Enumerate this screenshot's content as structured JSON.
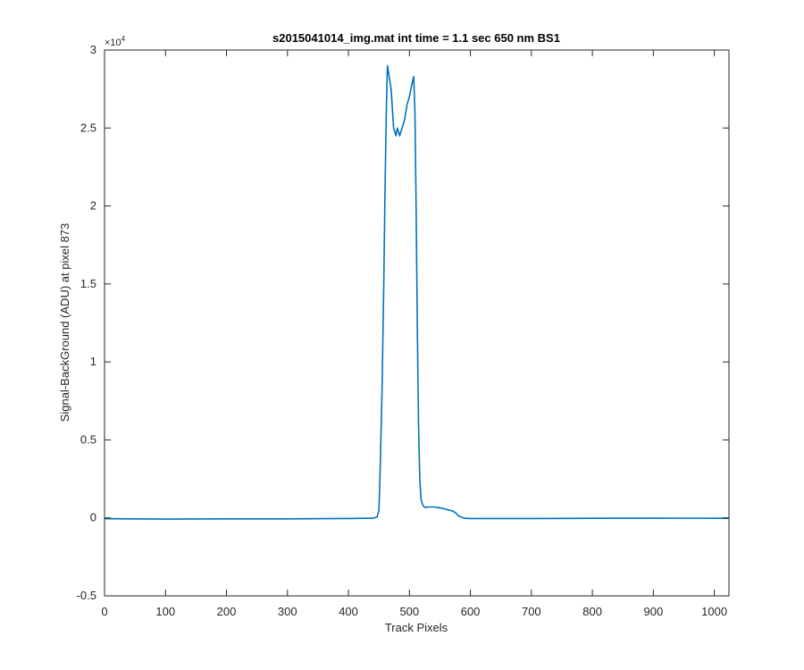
{
  "chart_data": {
    "type": "line",
    "title": "s2015041014_img.mat int time = 1.1 sec  650 nm BS1",
    "xlabel": "Track Pixels",
    "ylabel": "Signal-BackGround (ADU) at pixel 873",
    "xlim": [
      0,
      1024
    ],
    "ylim": [
      -5000,
      30000
    ],
    "x_ticks": [
      0,
      100,
      200,
      300,
      400,
      500,
      600,
      700,
      800,
      900,
      1000
    ],
    "x_tick_labels": [
      "0",
      "100",
      "200",
      "300",
      "400",
      "500",
      "600",
      "700",
      "800",
      "900",
      "1000"
    ],
    "y_ticks": [
      -5000,
      0,
      5000,
      10000,
      15000,
      20000,
      25000,
      30000
    ],
    "y_tick_labels": [
      "-0.5",
      "0",
      "0.5",
      "1",
      "1.5",
      "2",
      "2.5",
      "3"
    ],
    "y_exponent_label": "×10",
    "y_exponent_power": "4",
    "grid": false,
    "legend": "none",
    "line_color": "#0072BD",
    "series": [
      {
        "x": [
          0,
          100,
          200,
          300,
          400,
          440,
          447,
          450,
          452,
          455,
          458,
          460,
          462,
          464,
          466,
          470,
          474,
          478,
          480,
          484,
          488,
          492,
          496,
          500,
          504,
          507,
          509,
          511,
          513,
          515,
          517,
          519,
          522,
          526,
          530,
          540,
          550,
          560,
          570,
          575,
          580,
          585,
          590,
          600,
          700,
          800,
          900,
          1024
        ],
        "y": [
          -50,
          -80,
          -60,
          -60,
          -40,
          -20,
          50,
          500,
          3000,
          8000,
          15000,
          21000,
          26000,
          29000,
          28500,
          27500,
          25000,
          24500,
          25000,
          24500,
          25000,
          25500,
          26500,
          27000,
          27800,
          28300,
          26000,
          20000,
          12000,
          6000,
          2500,
          1200,
          800,
          650,
          700,
          700,
          650,
          550,
          450,
          350,
          150,
          50,
          -20,
          -40,
          -40,
          -30,
          -20,
          -30
        ]
      }
    ]
  }
}
